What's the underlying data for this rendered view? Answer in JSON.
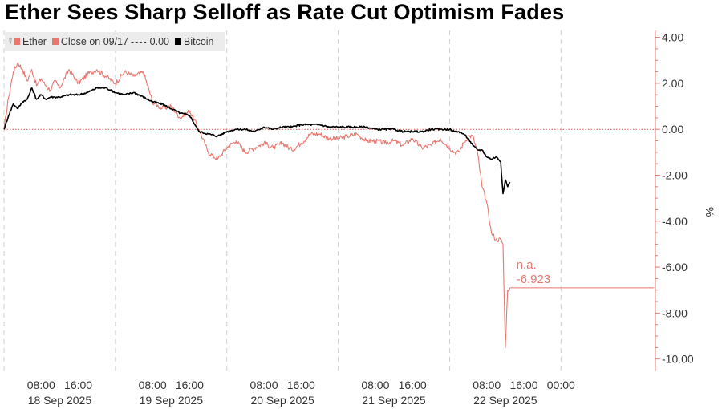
{
  "title": "Ether Sees Sharp Selloff as Rate Cut Optimism Fades",
  "legend": {
    "ether": "Ether",
    "close": "Close on 09/17",
    "close_dash": "----",
    "close_value": "0.00",
    "bitcoin": "Bitcoin"
  },
  "colors": {
    "ether": "#e8776f",
    "bitcoin": "#000000",
    "zero_line": "#e05050",
    "axis": "#e8776f"
  },
  "last_value_label": {
    "line1": "n.a.",
    "line2": "-6.923"
  },
  "chart_data": {
    "type": "line",
    "title": "Ether Sees Sharp Selloff as Rate Cut Optimism Fades",
    "ylabel": "%",
    "ylim": [
      -10.5,
      4.3
    ],
    "yticks": [
      4,
      2,
      0,
      -2,
      -4,
      -6,
      -8,
      -10
    ],
    "ytick_labels": [
      "4.00",
      "2.00",
      "0.00",
      "-2.00",
      "-4.00",
      "-6.00",
      "-8.00",
      "-10.00"
    ],
    "x_unit": "hours since 00:00 18 Sep 2025",
    "xlim": [
      0,
      140
    ],
    "day_labels": [
      "18 Sep 2025",
      "19 Sep 2025",
      "20 Sep 2025",
      "21 Sep 2025",
      "22 Sep 2025"
    ],
    "time_tick_labels": [
      "08:00",
      "16:00",
      "08:00",
      "16:00",
      "08:00",
      "16:00",
      "08:00",
      "16:00",
      "08:00",
      "16:00",
      "00:00"
    ],
    "time_ticks": [
      8,
      16,
      32,
      40,
      56,
      64,
      80,
      88,
      104,
      112,
      120
    ],
    "reference_line": {
      "name": "Close on 09/17",
      "value": 0.0
    },
    "series": [
      {
        "name": "Ether",
        "x": [
          0,
          1,
          2,
          3,
          4,
          5,
          6,
          7,
          8,
          9,
          10,
          11,
          12,
          14,
          16,
          18,
          20,
          22,
          24,
          26,
          28,
          30,
          32,
          34,
          36,
          38,
          40,
          42,
          44,
          46,
          48,
          50,
          52,
          54,
          56,
          58,
          60,
          62,
          64,
          66,
          68,
          70,
          72,
          74,
          76,
          78,
          80,
          82,
          84,
          86,
          88,
          90,
          92,
          94,
          96,
          97,
          98,
          99,
          100,
          101,
          102,
          103,
          104,
          105,
          106,
          107,
          107.5,
          108,
          108.5,
          109
        ],
        "y": [
          0.0,
          1.4,
          2.5,
          2.9,
          2.6,
          2.1,
          2.6,
          1.9,
          2.2,
          1.9,
          1.7,
          2.1,
          1.8,
          2.6,
          2.0,
          2.4,
          2.6,
          2.3,
          2.0,
          2.5,
          2.3,
          2.5,
          1.2,
          0.9,
          1.0,
          0.5,
          0.8,
          0.0,
          -1.0,
          -1.3,
          -0.8,
          -0.5,
          -1.0,
          -0.8,
          -0.6,
          -0.8,
          -0.6,
          -0.9,
          -0.6,
          -0.2,
          -0.2,
          -0.4,
          -0.4,
          -0.3,
          -0.2,
          -0.5,
          -0.5,
          -0.6,
          -0.5,
          -0.7,
          -0.4,
          -0.8,
          -0.7,
          -0.4,
          -0.8,
          -1.0,
          -1.0,
          -0.6,
          -0.3,
          -0.3,
          -1.0,
          -2.5,
          -3.2,
          -4.5,
          -4.8,
          -4.8,
          -5.0,
          -9.5,
          -7.0,
          -6.9
        ]
      },
      {
        "name": "Bitcoin",
        "x": [
          0,
          1,
          2,
          3,
          4,
          5,
          6,
          7,
          8,
          9,
          10,
          11,
          12,
          14,
          16,
          18,
          20,
          22,
          24,
          26,
          28,
          30,
          32,
          34,
          36,
          38,
          40,
          42,
          44,
          46,
          48,
          50,
          52,
          54,
          56,
          58,
          60,
          62,
          64,
          66,
          68,
          70,
          72,
          74,
          76,
          78,
          80,
          82,
          84,
          86,
          88,
          90,
          92,
          94,
          96,
          97,
          98,
          99,
          100,
          101,
          102,
          103,
          104,
          105,
          106,
          107,
          107.5,
          108,
          108.5,
          109
        ],
        "y": [
          0.0,
          0.6,
          1.1,
          0.9,
          1.2,
          1.3,
          1.8,
          1.3,
          1.5,
          1.3,
          1.4,
          1.4,
          1.4,
          1.5,
          1.5,
          1.6,
          1.8,
          1.8,
          1.6,
          1.5,
          1.6,
          1.4,
          1.2,
          1.1,
          0.9,
          0.7,
          0.6,
          -0.1,
          -0.2,
          -0.3,
          -0.1,
          0.0,
          0.0,
          -0.1,
          0.1,
          0.0,
          0.1,
          0.1,
          0.2,
          0.2,
          0.2,
          0.1,
          0.1,
          0.1,
          0.1,
          0.1,
          0.0,
          0.0,
          0.0,
          -0.1,
          -0.1,
          -0.1,
          0.0,
          0.0,
          0.0,
          -0.1,
          -0.1,
          -0.2,
          -0.4,
          -0.7,
          -0.9,
          -0.9,
          -1.2,
          -1.3,
          -1.2,
          -1.4,
          -2.8,
          -2.2,
          -2.5,
          -2.3
        ]
      }
    ]
  }
}
